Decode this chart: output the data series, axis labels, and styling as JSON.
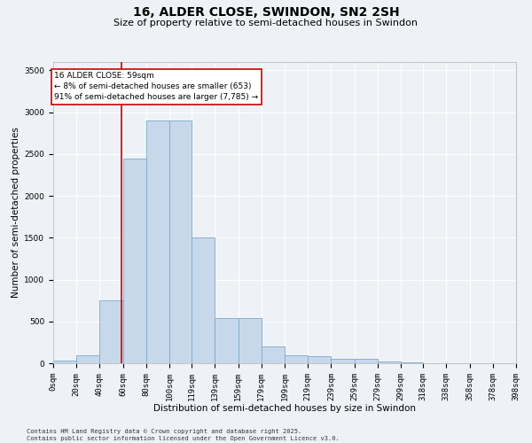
{
  "title_line1": "16, ALDER CLOSE, SWINDON, SN2 2SH",
  "title_line2": "Size of property relative to semi-detached houses in Swindon",
  "xlabel": "Distribution of semi-detached houses by size in Swindon",
  "ylabel": "Number of semi-detached properties",
  "footnote": "Contains HM Land Registry data © Crown copyright and database right 2025.\nContains public sector information licensed under the Open Government Licence v3.0.",
  "bar_edges": [
    0,
    20,
    40,
    60,
    80,
    100,
    119,
    139,
    159,
    179,
    199,
    219,
    239,
    259,
    279,
    299,
    318,
    338,
    358,
    378,
    398
  ],
  "bar_heights": [
    30,
    100,
    750,
    2450,
    2900,
    2900,
    1500,
    540,
    540,
    200,
    100,
    80,
    50,
    50,
    20,
    10,
    5,
    3,
    2,
    2
  ],
  "bar_color": "#c8d8eb",
  "bar_edge_color": "#7aaac8",
  "property_line_x": 59,
  "property_line_color": "#cc0000",
  "annotation_text": "16 ALDER CLOSE: 59sqm\n← 8% of semi-detached houses are smaller (653)\n91% of semi-detached houses are larger (7,785) →",
  "annotation_box_color": "#cc0000",
  "ylim": [
    0,
    3600
  ],
  "yticks": [
    0,
    500,
    1000,
    1500,
    2000,
    2500,
    3000,
    3500
  ],
  "xlim": [
    0,
    398
  ],
  "background_color": "#eef2f7",
  "grid_color": "#ffffff",
  "title_fontsize": 10,
  "subtitle_fontsize": 8,
  "axis_label_fontsize": 7.5,
  "tick_fontsize": 6.5,
  "annotation_fontsize": 6.5,
  "footnote_fontsize": 5.0
}
